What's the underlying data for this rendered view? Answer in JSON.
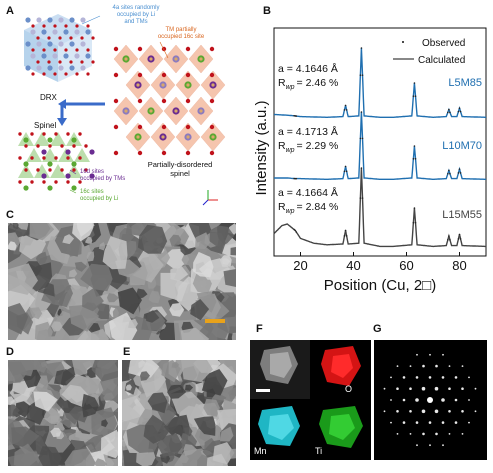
{
  "panels": {
    "a": "A",
    "b": "B",
    "c": "C",
    "d": "D",
    "e": "E",
    "f": "F",
    "g": "G"
  },
  "panel_a": {
    "drx_label": "DRX",
    "spinel_label": "Spinel",
    "pds_label_1": "Partially-disordered",
    "pds_label_2": "spinel",
    "ann_4a_1": "4a sites randomly",
    "ann_4a_2": "occupied by Li",
    "ann_4a_3": "and TMs",
    "ann_tm_1": "TM partially",
    "ann_tm_2": "occupied 16c site",
    "ann_16d_1": "16d sites",
    "ann_16d_2": "occupied by TMs",
    "ann_16c_1": "16c sites",
    "ann_16c_2": "occupied by Li",
    "colors": {
      "drx_blue": "#4a8fd0",
      "tm_orange": "#d9661f",
      "purple": "#6a2c91",
      "green": "#5aa832",
      "oxygen": "#c0121b",
      "arrow": "#3a6bc9"
    }
  },
  "panel_b": {
    "ylabel": "Intensity (a.u.)",
    "xlabel": "Position (Cu, 2□)",
    "legend_observed": "Observed",
    "legend_calculated": "Calculated",
    "xticks": [
      "20",
      "40",
      "60",
      "80"
    ],
    "samples": [
      {
        "name": "L5M85",
        "a_text": "a = 4.1646 Å",
        "r_val": "= 2.46 %",
        "color": "#1f6fb0"
      },
      {
        "name": "L10M70",
        "a_text": "a = 4.1713 Å",
        "r_val": "= 2.29 %",
        "color": "#1f6fb0"
      },
      {
        "name": "L15M55",
        "a_text": "a = 4.1664 Å",
        "r_val": "= 2.84 %",
        "color": "#444444"
      }
    ],
    "r_symbol": "R",
    "r_sub": "wp"
  },
  "chart_data": {
    "type": "line",
    "title": "",
    "xlabel": "Position (Cu, 2□)",
    "ylabel": "Intensity (a.u.)",
    "xlim": [
      10,
      90
    ],
    "peaks_2theta": [
      18,
      37,
      43,
      63,
      76,
      80
    ],
    "series": [
      {
        "name": "L5M85",
        "x": [
          10,
          15,
          18,
          20,
          25,
          30,
          36,
          37,
          38,
          42,
          43,
          44,
          50,
          55,
          62,
          63,
          64,
          70,
          75,
          76,
          77,
          79,
          80,
          81,
          90
        ],
        "y": [
          0.05,
          0.04,
          0.03,
          0.02,
          0.015,
          0.01,
          0.02,
          0.18,
          0.02,
          0.03,
          1.0,
          0.03,
          0.01,
          0.01,
          0.03,
          0.5,
          0.03,
          0.01,
          0.02,
          0.12,
          0.02,
          0.02,
          0.14,
          0.02,
          0.01
        ]
      },
      {
        "name": "L10M70",
        "x": [
          10,
          15,
          18,
          20,
          25,
          30,
          36,
          37,
          38,
          42,
          43,
          44,
          50,
          55,
          62,
          63,
          64,
          70,
          75,
          76,
          77,
          79,
          80,
          81,
          90
        ],
        "y": [
          0.03,
          0.03,
          0.02,
          0.02,
          0.015,
          0.01,
          0.02,
          0.2,
          0.02,
          0.03,
          1.0,
          0.03,
          0.01,
          0.01,
          0.03,
          0.5,
          0.03,
          0.01,
          0.02,
          0.14,
          0.02,
          0.02,
          0.16,
          0.02,
          0.01
        ]
      },
      {
        "name": "L15M55",
        "x": [
          10,
          13,
          15,
          18,
          20,
          25,
          30,
          36,
          37,
          38,
          42,
          43,
          44,
          50,
          55,
          62,
          63,
          64,
          70,
          75,
          76,
          77,
          79,
          80,
          81,
          90
        ],
        "y": [
          0.18,
          0.28,
          0.3,
          0.22,
          0.12,
          0.06,
          0.04,
          0.05,
          0.22,
          0.05,
          0.06,
          1.0,
          0.06,
          0.02,
          0.02,
          0.04,
          0.5,
          0.04,
          0.02,
          0.03,
          0.15,
          0.03,
          0.03,
          0.17,
          0.03,
          0.02
        ]
      }
    ]
  },
  "panel_f": {
    "o_label": "O",
    "mn_label": "Mn",
    "ti_label": "Ti"
  }
}
